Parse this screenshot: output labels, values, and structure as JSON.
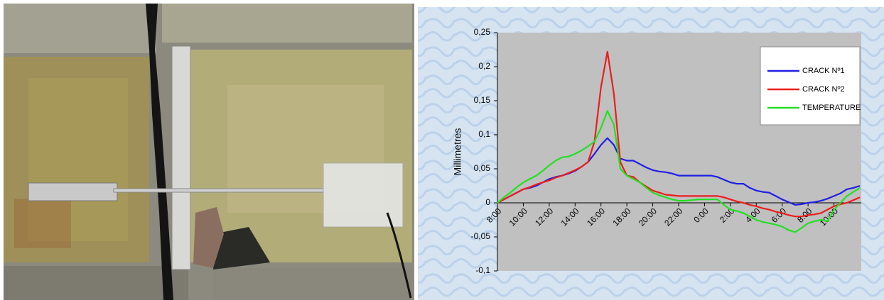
{
  "chart_data": {
    "type": "line",
    "y_label": "Millimetres",
    "categories": [
      "8:00",
      null,
      null,
      null,
      "10:00",
      null,
      null,
      null,
      "12:00",
      null,
      null,
      null,
      "14:00",
      null,
      null,
      null,
      "16:00",
      null,
      null,
      null,
      "18:00",
      null,
      null,
      null,
      "20:00",
      null,
      null,
      null,
      "22:00",
      null,
      null,
      null,
      "0:00",
      null,
      null,
      null,
      "2:00",
      null,
      null,
      null,
      "4:00",
      null,
      null,
      null,
      "6:00",
      null,
      null,
      null,
      "8:00",
      null,
      null,
      null,
      "10:00",
      null,
      null,
      null,
      null
    ],
    "series": [
      {
        "name": "CRACK Nº1",
        "color": "#1f1fe6",
        "values": [
          0,
          0.005,
          0.01,
          0.015,
          0.02,
          0.022,
          0.025,
          0.03,
          0.035,
          0.038,
          0.04,
          0.043,
          0.047,
          0.053,
          0.06,
          0.072,
          0.085,
          0.095,
          0.085,
          0.065,
          0.062,
          0.062,
          0.057,
          0.052,
          0.048,
          0.046,
          0.045,
          0.043,
          0.04,
          0.04,
          0.04,
          0.04,
          0.04,
          0.04,
          0.038,
          0.034,
          0.03,
          0.028,
          0.028,
          0.022,
          0.018,
          0.016,
          0.015,
          0.01,
          0.005,
          0.001,
          -0.003,
          -0.002,
          0,
          0.001,
          0.003,
          0.006,
          0.01,
          0.014,
          0.02,
          0.022,
          0.025
        ]
      },
      {
        "name": "CRACK Nº2",
        "color": "#ee1c1c",
        "values": [
          0,
          0.005,
          0.01,
          0.015,
          0.02,
          0.023,
          0.027,
          0.03,
          0.033,
          0.037,
          0.04,
          0.044,
          0.048,
          0.053,
          0.06,
          0.09,
          0.17,
          0.222,
          0.16,
          0.06,
          0.04,
          0.038,
          0.03,
          0.024,
          0.018,
          0.015,
          0.012,
          0.011,
          0.01,
          0.01,
          0.01,
          0.01,
          0.01,
          0.01,
          0.01,
          0.008,
          0.005,
          0.002,
          0,
          -0.003,
          -0.005,
          -0.008,
          -0.01,
          -0.013,
          -0.015,
          -0.018,
          -0.02,
          -0.02,
          -0.018,
          -0.017,
          -0.015,
          -0.01,
          -0.005,
          -0.002,
          0,
          0.004,
          0.008
        ]
      },
      {
        "name": "TEMPERATURE",
        "color": "#22e022",
        "values": [
          0,
          0.008,
          0.015,
          0.023,
          0.03,
          0.035,
          0.04,
          0.047,
          0.055,
          0.062,
          0.067,
          0.068,
          0.072,
          0.077,
          0.083,
          0.09,
          0.11,
          0.135,
          0.115,
          0.05,
          0.04,
          0.035,
          0.03,
          0.022,
          0.015,
          0.011,
          0.008,
          0.005,
          0.003,
          0.003,
          0.004,
          0.005,
          0.005,
          0.005,
          0.005,
          -0.003,
          -0.01,
          -0.012,
          -0.015,
          -0.02,
          -0.025,
          -0.028,
          -0.03,
          -0.032,
          -0.035,
          -0.04,
          -0.043,
          -0.037,
          -0.03,
          -0.027,
          -0.025,
          -0.027,
          -0.01,
          0,
          0.01,
          0.016,
          0.022
        ]
      }
    ],
    "ylim": [
      -0.1,
      0.25
    ],
    "yticks": [
      {
        "value": -0.1,
        "label": "-0,1"
      },
      {
        "value": -0.05,
        "label": "-0,05"
      },
      0,
      {
        "value": 0.05,
        "label": "0,05"
      },
      {
        "value": 0.1,
        "label": "0,1"
      },
      {
        "value": 0.15,
        "label": "0,15"
      },
      {
        "value": 0.2,
        "label": "0,2"
      },
      {
        "value": 0.25,
        "label": "0,25"
      }
    ],
    "grid": false,
    "legend": "upper-right"
  }
}
